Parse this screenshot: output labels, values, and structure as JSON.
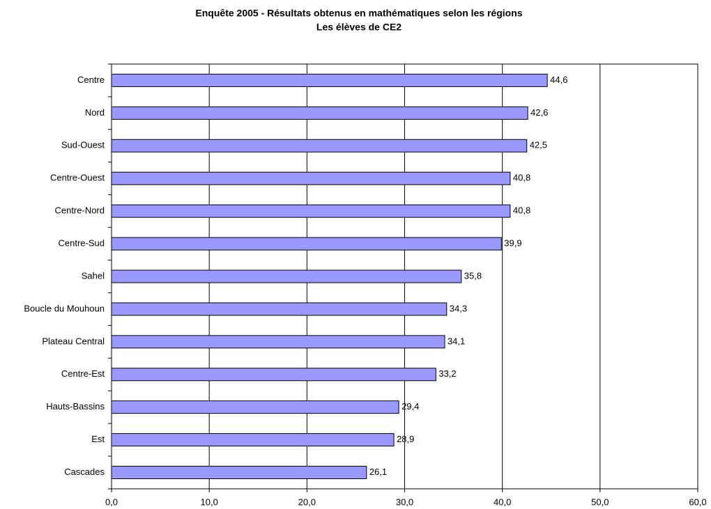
{
  "chart_data": {
    "type": "bar",
    "orientation": "horizontal",
    "title": "Enquête 2005 - Résultats obtenus en mathématiques selon les régions",
    "subtitle": "Les élèves de CE2",
    "categories": [
      "Centre",
      "Nord",
      "Sud-Ouest",
      "Centre-Ouest",
      "Centre-Nord",
      "Centre-Sud",
      "Sahel",
      "Boucle du Mouhoun",
      "Plateau Central",
      "Centre-Est",
      "Hauts-Bassins",
      "Est",
      "Cascades"
    ],
    "values": [
      44.6,
      42.6,
      42.5,
      40.8,
      40.8,
      39.9,
      35.8,
      34.3,
      34.1,
      33.2,
      29.4,
      28.9,
      26.1
    ],
    "value_labels": [
      "44,6",
      "42,6",
      "42,5",
      "40,8",
      "40,8",
      "39,9",
      "35,8",
      "34,3",
      "34,1",
      "33,2",
      "29,4",
      "28,9",
      "26,1"
    ],
    "color": "#9999ff",
    "xlim": [
      0,
      60
    ],
    "xticks": [
      {
        "value": 0,
        "label": "0,0"
      },
      {
        "value": 10,
        "label": "10,0"
      },
      {
        "value": 20,
        "label": "20,0"
      },
      {
        "value": 30,
        "label": "30,0"
      },
      {
        "value": 40,
        "label": "40,0"
      },
      {
        "value": 50,
        "label": "50,0"
      },
      {
        "value": 60,
        "label": "60,0"
      }
    ],
    "grid": true
  }
}
